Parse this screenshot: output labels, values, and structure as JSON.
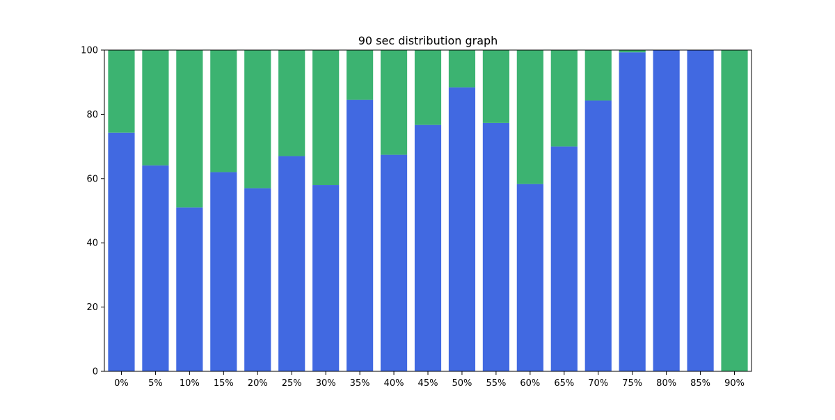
{
  "chart_data": {
    "type": "bar",
    "stacked": true,
    "title": "90 sec distribution graph",
    "xlabel": "",
    "ylabel": "",
    "categories": [
      "0%",
      "5%",
      "10%",
      "15%",
      "20%",
      "25%",
      "30%",
      "35%",
      "40%",
      "45%",
      "50%",
      "55%",
      "60%",
      "65%",
      "70%",
      "75%",
      "80%",
      "85%",
      "90%"
    ],
    "series": [
      {
        "color": "#4169e1",
        "values": [
          74.3,
          64.1,
          51.0,
          62.0,
          57.0,
          67.0,
          58.0,
          84.5,
          67.4,
          76.7,
          88.4,
          77.3,
          58.3,
          70.0,
          84.3,
          99.3,
          100,
          100,
          0
        ]
      },
      {
        "color": "#3cb371",
        "values": [
          25.7,
          35.9,
          49.0,
          38.0,
          43.0,
          33.0,
          42.0,
          15.5,
          32.6,
          23.3,
          11.6,
          22.7,
          41.7,
          30.0,
          15.7,
          0.7,
          0,
          0,
          100
        ]
      }
    ],
    "ylim": [
      0,
      100
    ],
    "yticks": [
      0,
      20,
      40,
      60,
      80,
      100
    ],
    "grid": false,
    "legend": "none"
  }
}
